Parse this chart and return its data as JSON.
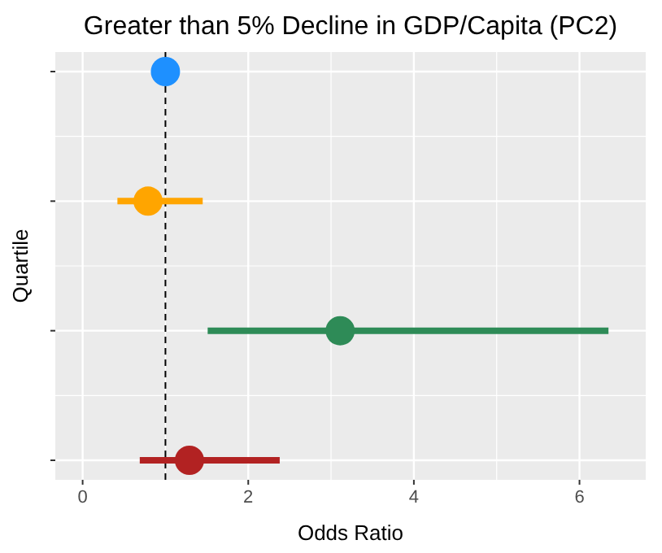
{
  "chart_data": {
    "type": "scatter",
    "title": "Greater than 5% Decline in GDP/Capita (PC2)",
    "xlabel": "Odds Ratio",
    "ylabel": "Quartile",
    "orientation": "horizontal",
    "categories": [
      null,
      null,
      null,
      null
    ],
    "values": [
      1.0,
      0.79,
      3.11,
      1.29
    ],
    "colors": [
      "#1e90ff",
      "#ffa500",
      "#2e8b57",
      "#b22222"
    ],
    "errors": [
      null,
      [
        0.42,
        1.45
      ],
      [
        1.51,
        6.35
      ],
      [
        0.69,
        2.38
      ]
    ],
    "xlim": [
      -0.33,
      6.8
    ],
    "xticks": [
      0,
      2,
      4,
      6
    ],
    "ref_lines": [
      {
        "axis": "x",
        "value": 1,
        "line_style": "dashed",
        "color": "#000000"
      }
    ],
    "grid": true,
    "marker": "circle",
    "tick_labels": "x"
  }
}
